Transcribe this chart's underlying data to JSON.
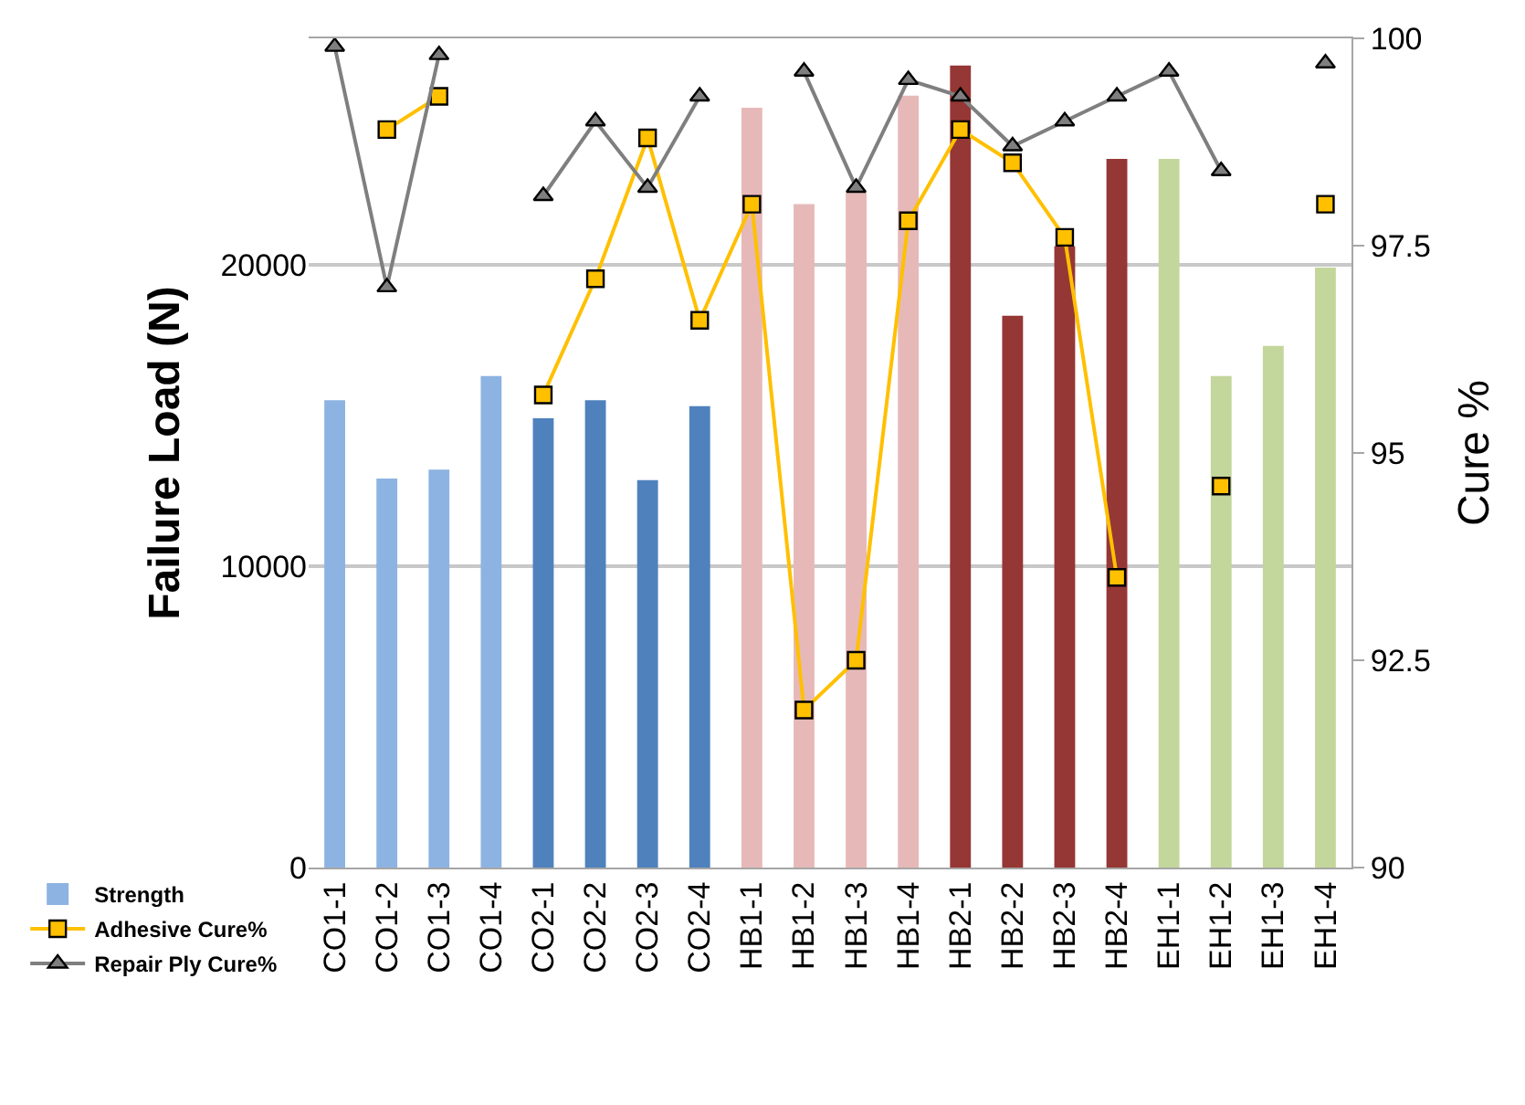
{
  "chart_data": {
    "type": "bar",
    "ylabel": "Failure Load (N)",
    "y2label": "Cure %",
    "categories": [
      "CO1-1",
      "CO1-2",
      "CO1-3",
      "CO1-4",
      "CO2-1",
      "CO2-2",
      "CO2-3",
      "CO2-4",
      "HB1-1",
      "HB1-2",
      "HB1-3",
      "HB1-4",
      "HB2-1",
      "HB2-2",
      "HB2-3",
      "HB2-4",
      "EH1-1",
      "EH1-2",
      "EH1-3",
      "EH1-4"
    ],
    "series": [
      {
        "name": "Strength",
        "color": "#4f81bd",
        "colors": [
          "#8db3e2",
          "#8db3e2",
          "#8db3e2",
          "#8db3e2",
          "#4f81bd",
          "#4f81bd",
          "#4f81bd",
          "#4f81bd",
          "#e6b9b8",
          "#e6b9b8",
          "#e6b9b8",
          "#e6b9b8",
          "#953735",
          "#953735",
          "#953735",
          "#953735",
          "#c3d69b",
          "#c3d69b",
          "#c3d69b",
          "#c3d69b"
        ],
        "values": [
          15500,
          12900,
          13200,
          16300,
          14900,
          15500,
          12850,
          15300,
          25200,
          22000,
          22400,
          25600,
          26600,
          18300,
          20600,
          23500,
          23500,
          16300,
          17300,
          19900
        ]
      },
      {
        "name": "Adhesive Cure%",
        "type": "line",
        "axis": "y2",
        "marker": "square",
        "color": "#ffc000",
        "values": [
          null,
          98.9,
          99.3,
          null,
          95.7,
          97.1,
          98.8,
          96.6,
          98.0,
          91.9,
          92.5,
          97.8,
          98.9,
          98.5,
          97.6,
          93.5,
          null,
          94.6,
          null,
          98.0
        ]
      },
      {
        "name": "Repair Ply Cure%",
        "type": "line",
        "axis": "y2",
        "marker": "triangle",
        "color": "#7f7f7f",
        "values": [
          99.9,
          97.0,
          99.8,
          null,
          98.1,
          99.0,
          98.2,
          99.3,
          null,
          99.6,
          98.2,
          99.5,
          99.3,
          98.7,
          99.0,
          99.3,
          99.6,
          98.4,
          null,
          99.7
        ]
      }
    ],
    "ylim": [
      0,
      27500
    ],
    "yticks": [
      0,
      10000,
      20000
    ],
    "y2lim": [
      90,
      100
    ],
    "y2ticks": [
      90,
      92.5,
      95,
      97.5,
      100
    ],
    "grid": "y",
    "legend": "bottom left"
  }
}
